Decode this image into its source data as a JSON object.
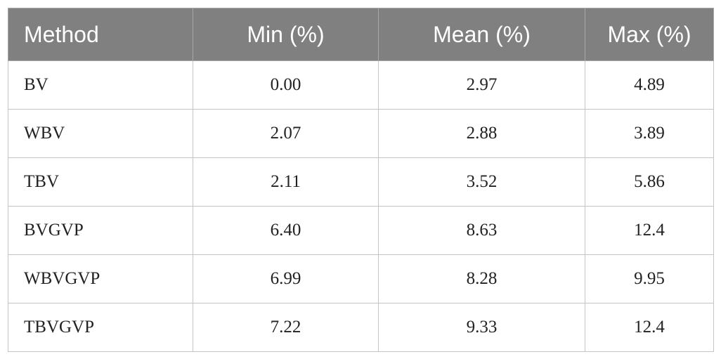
{
  "table": {
    "header": [
      "Method",
      "Min (%)",
      "Mean (%)",
      "Max (%)"
    ],
    "rows": [
      [
        "BV",
        "0.00",
        "2.97",
        "4.89"
      ],
      [
        "WBV",
        "2.07",
        "2.88",
        "3.89"
      ],
      [
        "TBV",
        "2.11",
        "3.52",
        "5.86"
      ],
      [
        "BVGVP",
        "6.40",
        "8.63",
        "12.4"
      ],
      [
        "WBVGVP",
        "6.99",
        "8.28",
        "9.95"
      ],
      [
        "TBVGVP",
        "7.22",
        "9.33",
        "12.4"
      ]
    ]
  }
}
